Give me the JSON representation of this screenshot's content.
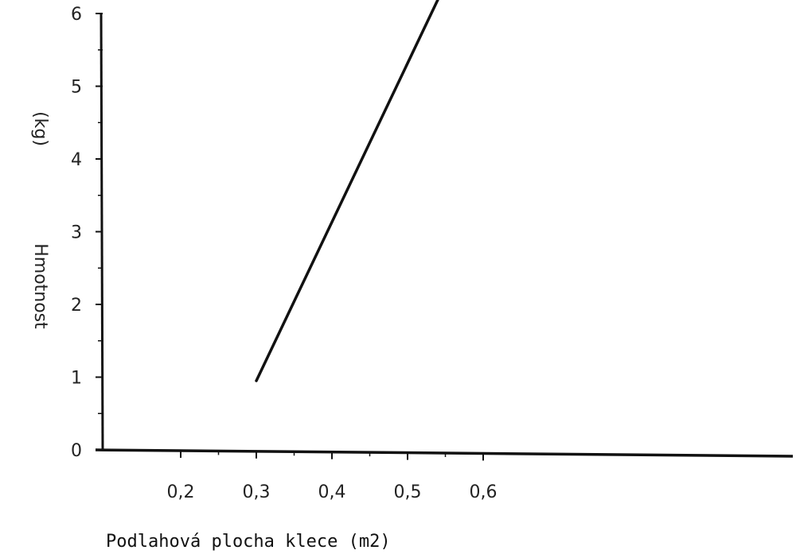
{
  "chart_data": {
    "type": "line",
    "title": "",
    "xlabel": "Podlahová plocha klece (m2)",
    "ylabel": "Hmotnost",
    "ylabel_unit": "(kg)",
    "xlim": [
      0.15,
      0.6
    ],
    "ylim": [
      0,
      6
    ],
    "x_ticks": [
      {
        "value": 0.2,
        "label": "0,2"
      },
      {
        "value": 0.3,
        "label": "0,3"
      },
      {
        "value": 0.4,
        "label": "0,4"
      },
      {
        "value": 0.5,
        "label": "0,5"
      },
      {
        "value": 0.6,
        "label": "0,6"
      }
    ],
    "y_ticks": [
      {
        "value": 0,
        "label": "0"
      },
      {
        "value": 1,
        "label": "1"
      },
      {
        "value": 2,
        "label": "2"
      },
      {
        "value": 3,
        "label": "3"
      },
      {
        "value": 4,
        "label": "4"
      },
      {
        "value": 5,
        "label": "5"
      },
      {
        "value": 6,
        "label": "6"
      }
    ],
    "series": [
      {
        "x": [
          0.3,
          0.545
        ],
        "y": [
          0.95,
          6.3
        ]
      }
    ],
    "grid": false,
    "legend": "none",
    "colors": {
      "line": "#111111",
      "axis": "#111111"
    }
  }
}
